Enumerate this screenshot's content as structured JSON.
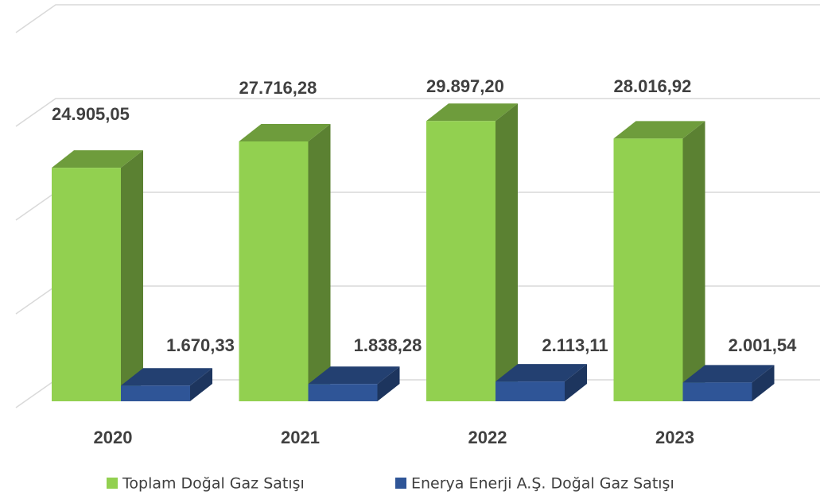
{
  "chart_data": {
    "type": "bar3d",
    "categories": [
      "2020",
      "2021",
      "2022",
      "2023"
    ],
    "series": [
      {
        "name": "Toplam Doğal Gaz Satışı",
        "color": "#92d050",
        "values": [
          24905.05,
          27716.28,
          29897.2,
          28016.92
        ],
        "value_labels": [
          "24.905,05",
          "27.716,28",
          "29.897,20",
          "28.016,92"
        ]
      },
      {
        "name": "Enerya Enerji A.Ş. Doğal Gaz Satışı",
        "color": "#2f5597",
        "values": [
          1670.33,
          1838.28,
          2113.11,
          2001.54
        ],
        "value_labels": [
          "1.670,33",
          "1.838,28",
          "2.113,11",
          "2.001,54"
        ]
      }
    ],
    "ylim": [
      0,
      40000
    ],
    "yticks": [
      0,
      10000,
      20000,
      30000,
      40000
    ],
    "grid": true
  }
}
